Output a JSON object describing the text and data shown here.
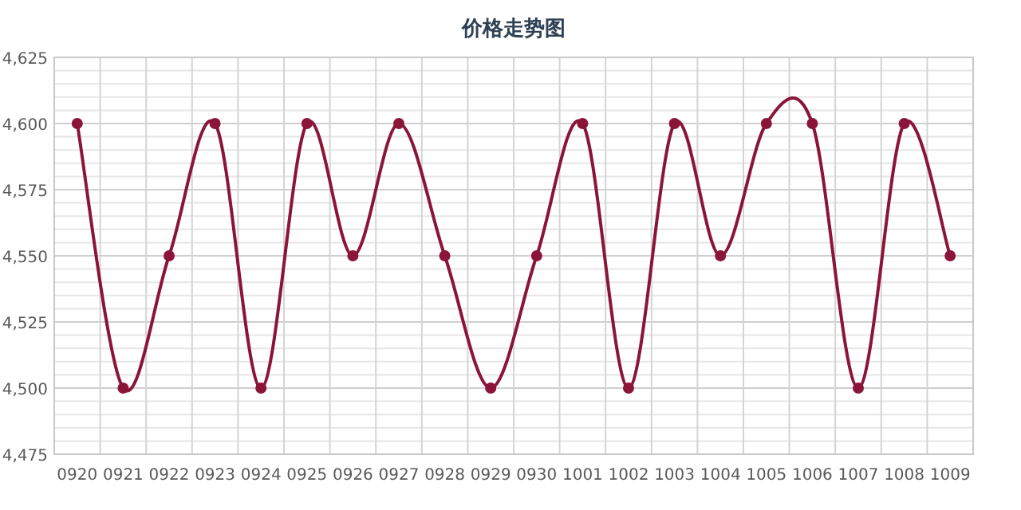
{
  "chart_data": {
    "type": "line",
    "title": "价格走势图",
    "categories": [
      "0920",
      "0921",
      "0922",
      "0923",
      "0924",
      "0925",
      "0926",
      "0927",
      "0928",
      "0929",
      "0930",
      "1001",
      "1002",
      "1003",
      "1004",
      "1005",
      "1006",
      "1007",
      "1008",
      "1009"
    ],
    "values": [
      4600,
      4500,
      4550,
      4600,
      4500,
      4600,
      4550,
      4600,
      4550,
      4500,
      4550,
      4600,
      4500,
      4600,
      4550,
      4600,
      4600,
      4500,
      4600,
      4550
    ],
    "color": "#8b1538",
    "ylim": [
      4475,
      4625
    ],
    "yticks": [
      {
        "value": 4475,
        "label": "4,475"
      },
      {
        "value": 4500,
        "label": "4,500"
      },
      {
        "value": 4525,
        "label": "4,525"
      },
      {
        "value": 4550,
        "label": "4,550"
      },
      {
        "value": 4575,
        "label": "4,575"
      },
      {
        "value": 4600,
        "label": "4,600"
      },
      {
        "value": 4625,
        "label": "4,625"
      }
    ],
    "grid": true,
    "marker": "circle"
  }
}
